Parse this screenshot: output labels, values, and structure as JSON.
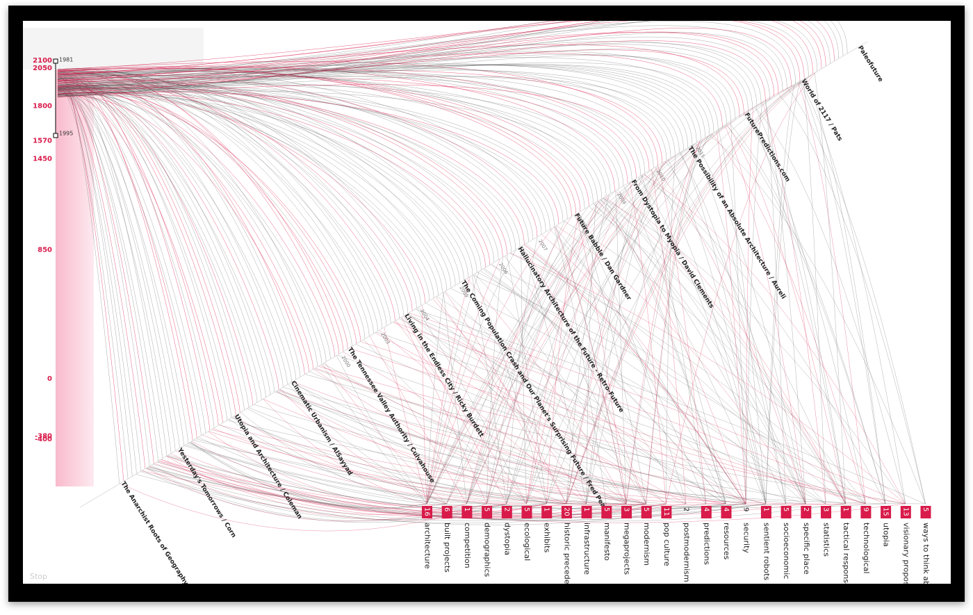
{
  "timeline": {
    "ticks": [
      2100,
      2050,
      1800,
      1570,
      1450,
      850,
      0,
      -380,
      -400
    ],
    "markers": [
      "1981",
      "1995"
    ]
  },
  "years": [
    "2011",
    "2010",
    "2009",
    "2008",
    "2007",
    "2006",
    "2005",
    "2004",
    "2003",
    "2000"
  ],
  "titles": [
    "Paleofuture",
    "World of 2117 / Pats",
    "FuturePredictions.com",
    "The Possibility of an Absolute Architecture / Aureli",
    "From Dystopia to Myopia / David Clements",
    "Future Babble / Dan Gardner",
    "Hallucinatory Architecture of the Future - Retro-Future",
    "The Coming Population Crash and Our Planet's Surprising Future / Fred Pearce",
    "Living in the Endless City / Ricky Burdett",
    "The Tennessee Valley Authority / Culvahouse",
    "Cinematic Urbanism / AlSayyad",
    "Utopia and Architecture / Coleman",
    "Yesterday's Tomorrows / Corn",
    "The Anarchist Roots of Geography"
  ],
  "tags": [
    {
      "count": 16,
      "name": "architecture",
      "highlighted": true
    },
    {
      "count": 6,
      "name": "built projects",
      "highlighted": true
    },
    {
      "count": 1,
      "name": "competition",
      "highlighted": true
    },
    {
      "count": 5,
      "name": "demographics",
      "highlighted": true
    },
    {
      "count": 2,
      "name": "dystopia",
      "highlighted": true
    },
    {
      "count": 5,
      "name": "ecological",
      "highlighted": true
    },
    {
      "count": 1,
      "name": "exhibits",
      "highlighted": true
    },
    {
      "count": 20,
      "name": "historic precedent",
      "highlighted": true
    },
    {
      "count": 1,
      "name": "infrastructure",
      "highlighted": true
    },
    {
      "count": 5,
      "name": "manifesto",
      "highlighted": true
    },
    {
      "count": 3,
      "name": "megaprojects",
      "highlighted": true
    },
    {
      "count": 5,
      "name": "modernism",
      "highlighted": true
    },
    {
      "count": 11,
      "name": "pop culture",
      "highlighted": true
    },
    {
      "count": 2,
      "name": "postmodernism",
      "highlighted": false
    },
    {
      "count": 4,
      "name": "predictions",
      "highlighted": true
    },
    {
      "count": 4,
      "name": "resources",
      "highlighted": true
    },
    {
      "count": 9,
      "name": "security",
      "highlighted": false
    },
    {
      "count": 1,
      "name": "sentient robots",
      "highlighted": true
    },
    {
      "count": 5,
      "name": "socioeconomic",
      "highlighted": true
    },
    {
      "count": 2,
      "name": "specific place",
      "highlighted": true
    },
    {
      "count": 3,
      "name": "statistics",
      "highlighted": true
    },
    {
      "count": 1,
      "name": "tactical responses",
      "highlighted": true
    },
    {
      "count": 9,
      "name": "technological",
      "highlighted": true
    },
    {
      "count": 15,
      "name": "utopia",
      "highlighted": true
    },
    {
      "count": 13,
      "name": "visionary proposal",
      "highlighted": true
    },
    {
      "count": 5,
      "name": "ways to think abou",
      "highlighted": true
    }
  ],
  "footer": "Stop"
}
